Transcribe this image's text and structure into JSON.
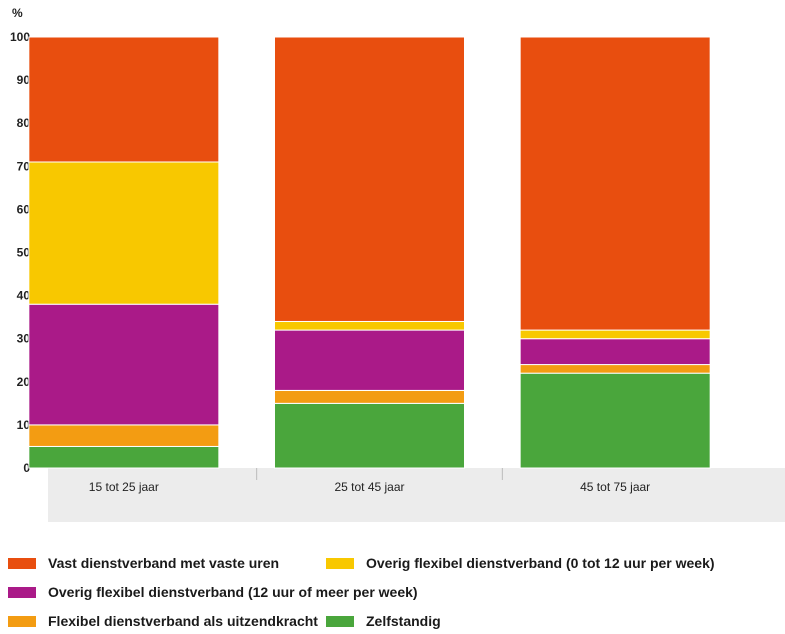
{
  "chart_data": {
    "type": "bar",
    "stacked": true,
    "ylabel": "%",
    "ylim": [
      0,
      100
    ],
    "yticks": [
      "0",
      "10",
      "20",
      "30",
      "40",
      "50",
      "60",
      "70",
      "80",
      "90",
      "100"
    ],
    "categories": [
      "15 tot 25 jaar",
      "25 tot 45 jaar",
      "45 tot 75 jaar"
    ],
    "series": [
      {
        "name": "Zelfstandig",
        "color": "#4aa63c",
        "values": [
          5,
          15,
          22
        ]
      },
      {
        "name": "Flexibel dienstverband als uitzendkracht",
        "color": "#f39c12",
        "values": [
          5,
          3,
          2
        ]
      },
      {
        "name": "Overig flexibel dienstverband (12 uur of meer per week)",
        "color": "#aa1a88",
        "values": [
          28,
          14,
          6
        ]
      },
      {
        "name": "Overig flexibel dienstverband (0 tot 12 uur per week)",
        "color": "#f8c800",
        "values": [
          33,
          2,
          2
        ]
      },
      {
        "name": "Vast dienstverband met vaste uren",
        "color": "#e84e0f",
        "values": [
          29,
          66,
          68
        ]
      }
    ],
    "grid": false,
    "legend_position": "bottom"
  },
  "legend_order": [
    4,
    3,
    2,
    1,
    0
  ]
}
